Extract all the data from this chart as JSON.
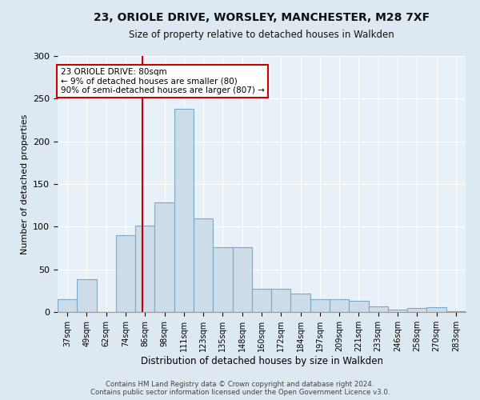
{
  "title_line1": "23, ORIOLE DRIVE, WORSLEY, MANCHESTER, M28 7XF",
  "title_line2": "Size of property relative to detached houses in Walkden",
  "xlabel": "Distribution of detached houses by size in Walkden",
  "ylabel": "Number of detached properties",
  "categories": [
    "37sqm",
    "49sqm",
    "62sqm",
    "74sqm",
    "86sqm",
    "98sqm",
    "111sqm",
    "123sqm",
    "135sqm",
    "148sqm",
    "160sqm",
    "172sqm",
    "184sqm",
    "197sqm",
    "209sqm",
    "221sqm",
    "233sqm",
    "246sqm",
    "258sqm",
    "270sqm",
    "283sqm"
  ],
  "values": [
    15,
    38,
    0,
    90,
    101,
    128,
    238,
    110,
    76,
    76,
    27,
    27,
    22,
    15,
    15,
    13,
    7,
    3,
    5,
    6,
    1
  ],
  "bar_color": "#ccdce8",
  "bar_edge_color": "#7aaac8",
  "vline_x_idx": 3.85,
  "vline_color": "#cc0000",
  "annotation_text": "23 ORIOLE DRIVE: 80sqm\n← 9% of detached houses are smaller (80)\n90% of semi-detached houses are larger (807) →",
  "annotation_box_color": "#ffffff",
  "annotation_box_edge_color": "#cc0000",
  "ylim": [
    0,
    300
  ],
  "yticks": [
    0,
    50,
    100,
    150,
    200,
    250,
    300
  ],
  "footer_text": "Contains HM Land Registry data © Crown copyright and database right 2024.\nContains public sector information licensed under the Open Government Licence v3.0.",
  "background_color": "#dde8f0",
  "plot_background_color": "#e8f0f8"
}
